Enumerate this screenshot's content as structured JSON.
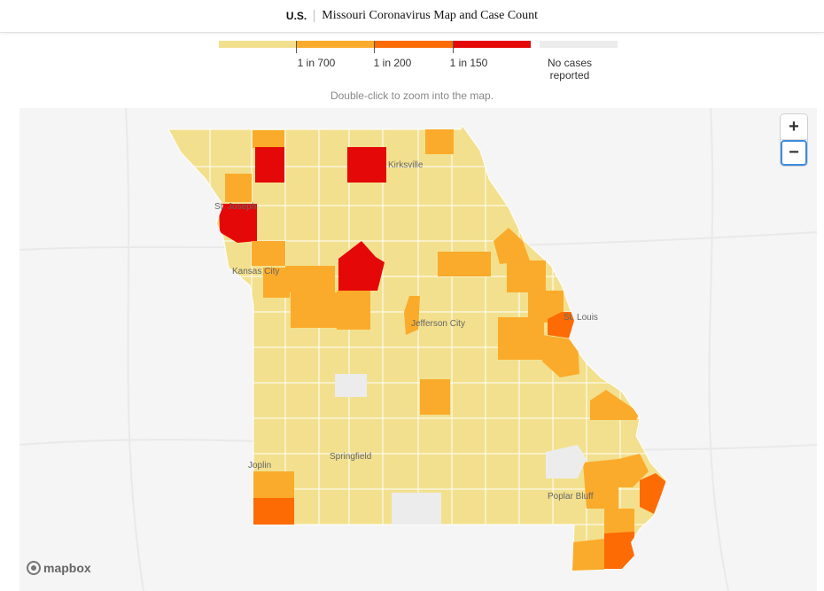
{
  "header": {
    "section": "U.S.",
    "title": "Missouri Coronavirus Map and Case Count"
  },
  "legend": {
    "bins": [
      {
        "color": "#f2e08e",
        "label": ""
      },
      {
        "color": "#fbab2b",
        "label": "1 in 700"
      },
      {
        "color": "#fc6b04",
        "label": "1 in 200"
      },
      {
        "color": "#e50808",
        "label": "1 in 150"
      }
    ],
    "no_cases": {
      "color": "#ececec",
      "label": "No cases reported"
    }
  },
  "hint": "Double-click to zoom into the map.",
  "map": {
    "cities": [
      "St. Joseph",
      "Kirksville",
      "Kansas City",
      "Jefferson City",
      "St. Louis",
      "Springfield",
      "Joplin",
      "Poplar Bluff"
    ],
    "zoom_in": "+",
    "zoom_out": "−",
    "attribution": "mapbox"
  }
}
